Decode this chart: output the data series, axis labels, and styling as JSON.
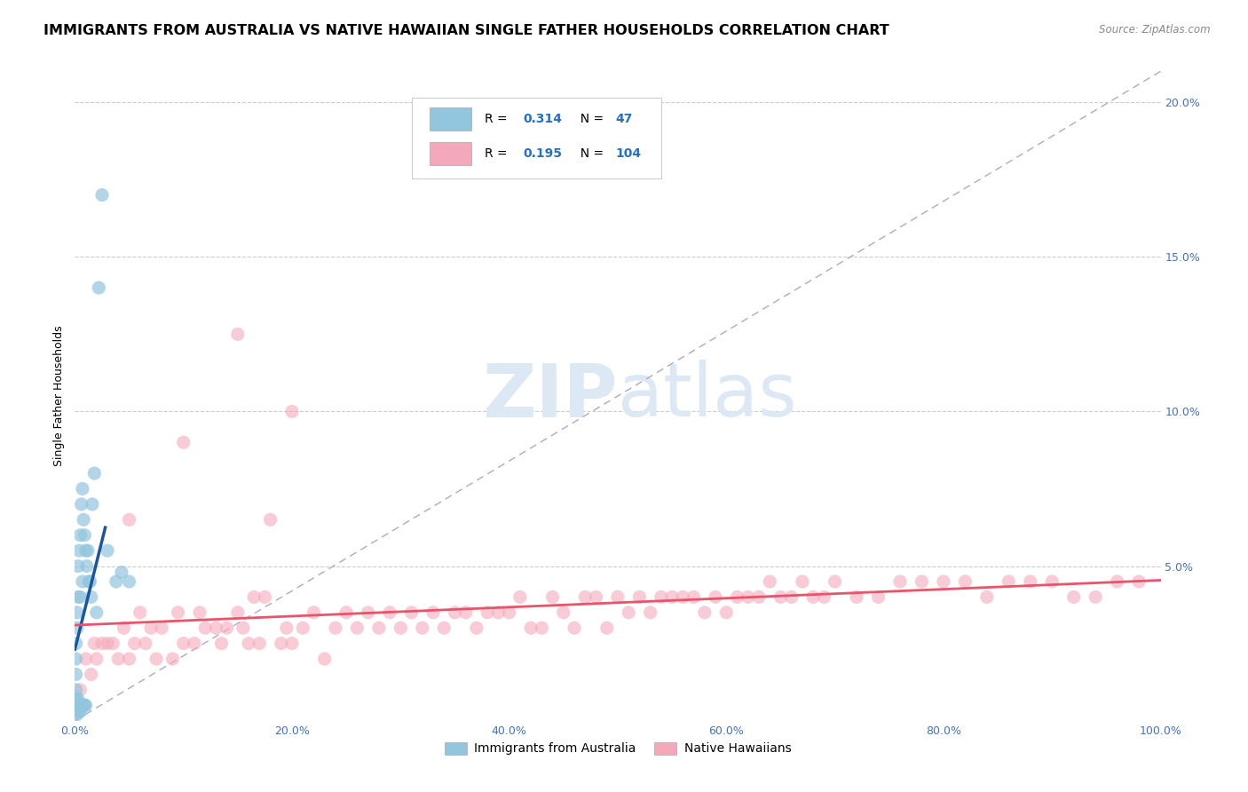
{
  "title": "IMMIGRANTS FROM AUSTRALIA VS NATIVE HAWAIIAN SINGLE FATHER HOUSEHOLDS CORRELATION CHART",
  "source": "Source: ZipAtlas.com",
  "ylabel": "Single Father Households",
  "xlim": [
    0.0,
    1.0
  ],
  "ylim": [
    0.0,
    0.21
  ],
  "r_australia": 0.314,
  "n_australia": 47,
  "r_hawaiian": 0.195,
  "n_hawaiian": 104,
  "australia_color": "#92c5de",
  "hawaiian_color": "#f4a9bb",
  "trend_australia_color": "#1a56a0",
  "trend_hawaiian_color": "#e8546a",
  "diagonal_color": "#aaaacc",
  "background_color": "#ffffff",
  "title_fontsize": 11.5,
  "label_fontsize": 9,
  "tick_fontsize": 9,
  "tick_color": "#4472c4",
  "australia_scatter": {
    "x": [
      0.001,
      0.001,
      0.001,
      0.001,
      0.001,
      0.001,
      0.001,
      0.002,
      0.002,
      0.002,
      0.002,
      0.002,
      0.003,
      0.003,
      0.003,
      0.003,
      0.004,
      0.004,
      0.004,
      0.005,
      0.005,
      0.005,
      0.006,
      0.006,
      0.007,
      0.007,
      0.007,
      0.008,
      0.008,
      0.009,
      0.009,
      0.01,
      0.01,
      0.011,
      0.012,
      0.013,
      0.014,
      0.015,
      0.016,
      0.018,
      0.02,
      0.022,
      0.025,
      0.03,
      0.038,
      0.043,
      0.05
    ],
    "y": [
      0.003,
      0.005,
      0.007,
      0.01,
      0.015,
      0.02,
      0.025,
      0.002,
      0.004,
      0.006,
      0.03,
      0.035,
      0.003,
      0.007,
      0.04,
      0.05,
      0.003,
      0.005,
      0.055,
      0.003,
      0.04,
      0.06,
      0.005,
      0.07,
      0.005,
      0.045,
      0.075,
      0.005,
      0.065,
      0.005,
      0.06,
      0.005,
      0.055,
      0.05,
      0.055,
      0.045,
      0.045,
      0.04,
      0.07,
      0.08,
      0.035,
      0.14,
      0.17,
      0.055,
      0.045,
      0.048,
      0.045
    ]
  },
  "hawaiian_scatter": {
    "x": [
      0.005,
      0.01,
      0.015,
      0.018,
      0.02,
      0.025,
      0.03,
      0.035,
      0.04,
      0.045,
      0.05,
      0.055,
      0.06,
      0.065,
      0.07,
      0.075,
      0.08,
      0.09,
      0.095,
      0.1,
      0.11,
      0.115,
      0.12,
      0.13,
      0.135,
      0.14,
      0.15,
      0.155,
      0.16,
      0.165,
      0.17,
      0.175,
      0.18,
      0.19,
      0.195,
      0.2,
      0.21,
      0.22,
      0.23,
      0.24,
      0.25,
      0.26,
      0.27,
      0.28,
      0.29,
      0.3,
      0.31,
      0.32,
      0.33,
      0.34,
      0.35,
      0.36,
      0.37,
      0.38,
      0.39,
      0.4,
      0.41,
      0.42,
      0.43,
      0.44,
      0.45,
      0.46,
      0.47,
      0.48,
      0.49,
      0.5,
      0.51,
      0.52,
      0.53,
      0.54,
      0.55,
      0.56,
      0.57,
      0.58,
      0.59,
      0.6,
      0.61,
      0.62,
      0.63,
      0.64,
      0.65,
      0.66,
      0.67,
      0.68,
      0.69,
      0.7,
      0.72,
      0.74,
      0.76,
      0.78,
      0.8,
      0.82,
      0.84,
      0.86,
      0.88,
      0.9,
      0.92,
      0.94,
      0.96,
      0.98,
      0.05,
      0.1,
      0.15,
      0.2
    ],
    "y": [
      0.01,
      0.02,
      0.015,
      0.025,
      0.02,
      0.025,
      0.025,
      0.025,
      0.02,
      0.03,
      0.02,
      0.025,
      0.035,
      0.025,
      0.03,
      0.02,
      0.03,
      0.02,
      0.035,
      0.025,
      0.025,
      0.035,
      0.03,
      0.03,
      0.025,
      0.03,
      0.035,
      0.03,
      0.025,
      0.04,
      0.025,
      0.04,
      0.065,
      0.025,
      0.03,
      0.025,
      0.03,
      0.035,
      0.02,
      0.03,
      0.035,
      0.03,
      0.035,
      0.03,
      0.035,
      0.03,
      0.035,
      0.03,
      0.035,
      0.03,
      0.035,
      0.035,
      0.03,
      0.035,
      0.035,
      0.035,
      0.04,
      0.03,
      0.03,
      0.04,
      0.035,
      0.03,
      0.04,
      0.04,
      0.03,
      0.04,
      0.035,
      0.04,
      0.035,
      0.04,
      0.04,
      0.04,
      0.04,
      0.035,
      0.04,
      0.035,
      0.04,
      0.04,
      0.04,
      0.045,
      0.04,
      0.04,
      0.045,
      0.04,
      0.04,
      0.045,
      0.04,
      0.04,
      0.045,
      0.045,
      0.045,
      0.045,
      0.04,
      0.045,
      0.045,
      0.045,
      0.04,
      0.04,
      0.045,
      0.045,
      0.065,
      0.09,
      0.125,
      0.1
    ]
  }
}
